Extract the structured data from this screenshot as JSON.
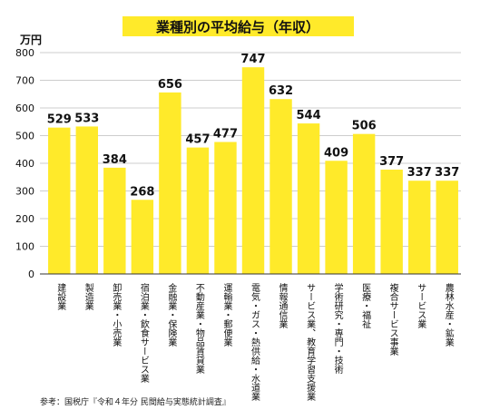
{
  "chart_data": {
    "type": "bar",
    "title": "業種別の平均給与（年収）",
    "ylabel": "万円",
    "ylim": [
      0,
      800
    ],
    "yticks": [
      0,
      100,
      200,
      300,
      400,
      500,
      600,
      700,
      800
    ],
    "grid": true,
    "categories": [
      "建設業",
      "製造業",
      "卸売業・小売業",
      "宿泊業・飲食サービス業",
      "金融業・保険業",
      "不動産業・物品賃貸業",
      "運輸業・郵便業",
      "電気・ガス・熱供給・水道業",
      "情報通信業",
      "サービス業、教育学習支援業",
      "学術研究・専門・技術",
      "医療・福祉",
      "複合サービス事業",
      "サービス業",
      "農林水産・鉱業"
    ],
    "values": [
      529,
      533,
      384,
      268,
      656,
      457,
      477,
      747,
      632,
      544,
      409,
      506,
      377,
      337,
      337
    ],
    "colors": {
      "bar": "#FFEA2A",
      "title_highlight": "#FFEA2A",
      "grid": "#BDBDBD",
      "axis": "#333333"
    }
  },
  "source_note": "参考：国税庁『令和４年分 民間給与実態統計調査』"
}
